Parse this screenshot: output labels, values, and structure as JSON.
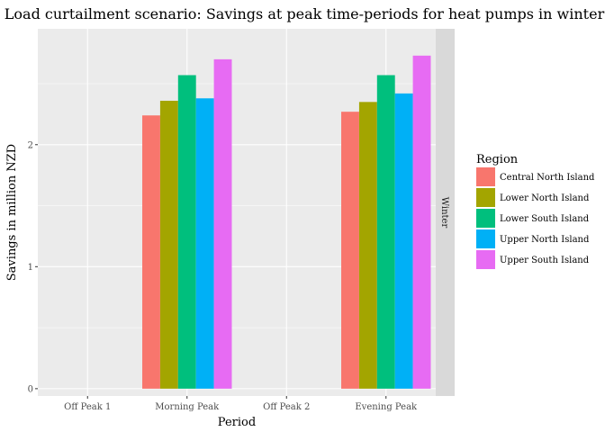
{
  "chart_data": {
    "type": "bar",
    "title": "Load curtailment scenario: Savings at peak time-periods for heat pumps in winter",
    "xlabel": "Period",
    "ylabel": "Savings in million NZD",
    "categories": [
      "Off Peak 1",
      "Morning Peak",
      "Off Peak 2",
      "Evening Peak"
    ],
    "ylim": [
      -0.06,
      2.95
    ],
    "yticks": [
      0,
      1,
      2
    ],
    "grid": true,
    "facet_label": "Winter",
    "legend": {
      "title": "Region",
      "position": "right"
    },
    "series": [
      {
        "name": "Central North Island",
        "color": "#F8766D",
        "values": [
          0,
          2.24,
          0,
          2.27
        ]
      },
      {
        "name": "Lower North Island",
        "color": "#A3A500",
        "values": [
          0,
          2.36,
          0,
          2.35
        ]
      },
      {
        "name": "Lower South Island",
        "color": "#00BF7D",
        "values": [
          0,
          2.57,
          0,
          2.57
        ]
      },
      {
        "name": "Upper North Island",
        "color": "#00B0F6",
        "values": [
          0,
          2.38,
          0,
          2.42
        ]
      },
      {
        "name": "Upper South Island",
        "color": "#E76BF3",
        "values": [
          0,
          2.7,
          0,
          2.73
        ]
      }
    ]
  }
}
